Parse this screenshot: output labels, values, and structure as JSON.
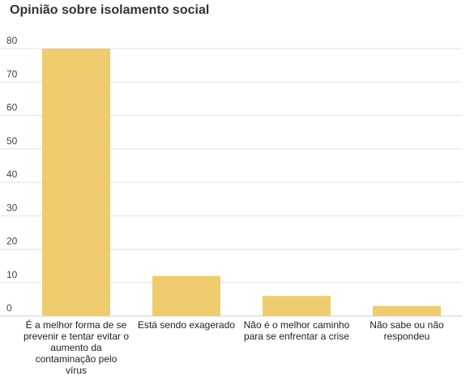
{
  "chart_data": {
    "type": "bar",
    "title": "Opinião sobre isolamento social",
    "xlabel": "",
    "ylabel": "",
    "categories": [
      "É a melhor forma de se\nprevenir e tentar evitar o\naumento da\ncontaminação pelo\nvírus",
      "Está sendo exagerado",
      "Não é o melhor caminho\npara se enfrentar a crise",
      "Não sabe ou não\nrespondeu"
    ],
    "values": [
      80,
      12,
      6,
      3
    ],
    "ylim": [
      0,
      80
    ],
    "yticks": [
      0,
      10,
      20,
      30,
      40,
      50,
      60,
      70,
      80
    ],
    "grid": true,
    "legend": "none",
    "colors": {
      "bar": "#efcc6d"
    }
  }
}
